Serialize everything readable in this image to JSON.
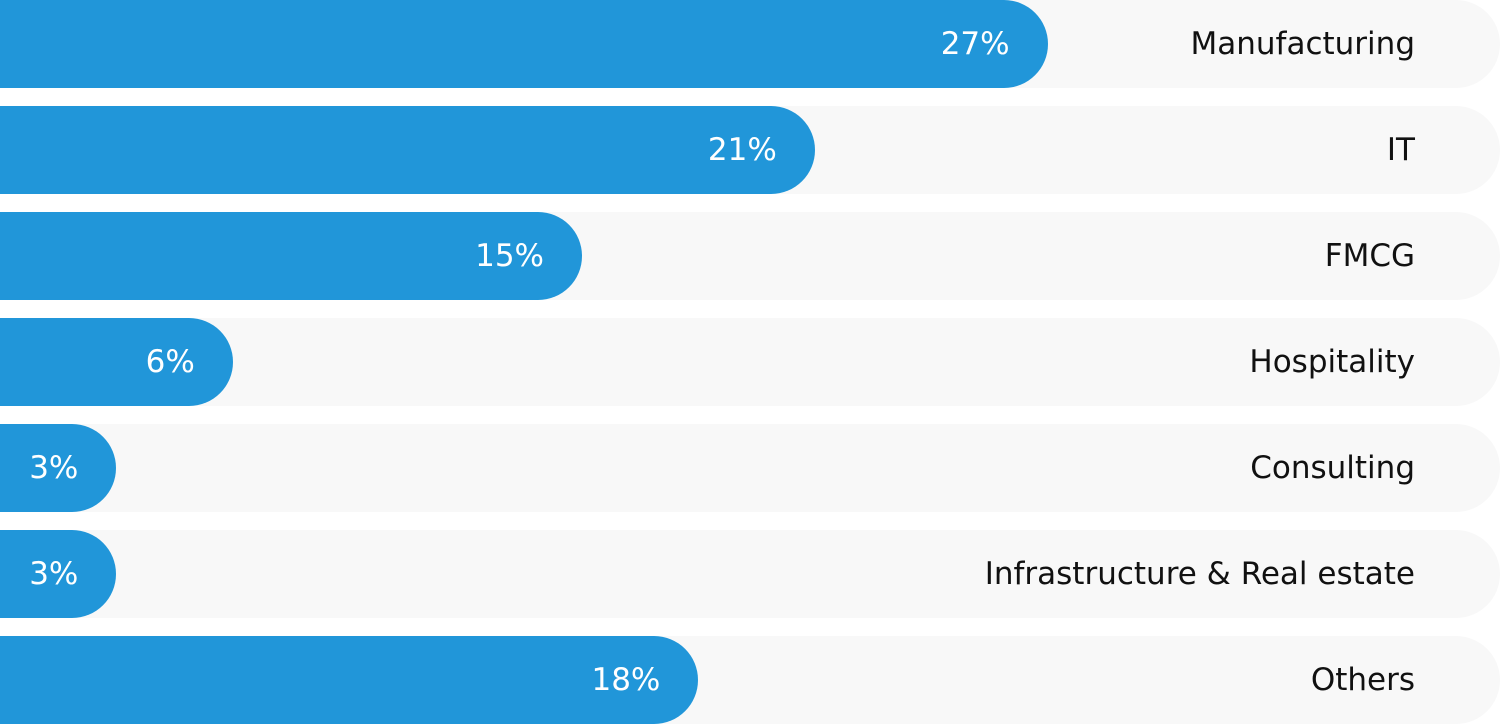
{
  "chart_data": {
    "type": "bar",
    "orientation": "horizontal",
    "categories": [
      "Manufacturing",
      "IT",
      "FMCG",
      "Hospitality",
      "Consulting",
      "Infrastructure & Real estate",
      "Others"
    ],
    "values": [
      27,
      21,
      15,
      6,
      3,
      3,
      18
    ],
    "value_labels": [
      "27%",
      "21%",
      "15%",
      "6%",
      "3%",
      "3%",
      "18%"
    ],
    "unit": "%",
    "title": "",
    "xlabel": "",
    "ylabel": "",
    "xlim": [
      0,
      100
    ],
    "grid": false,
    "legend": "none",
    "colors": {
      "bar": "#2196D9",
      "track": "#F8F8F8"
    }
  }
}
